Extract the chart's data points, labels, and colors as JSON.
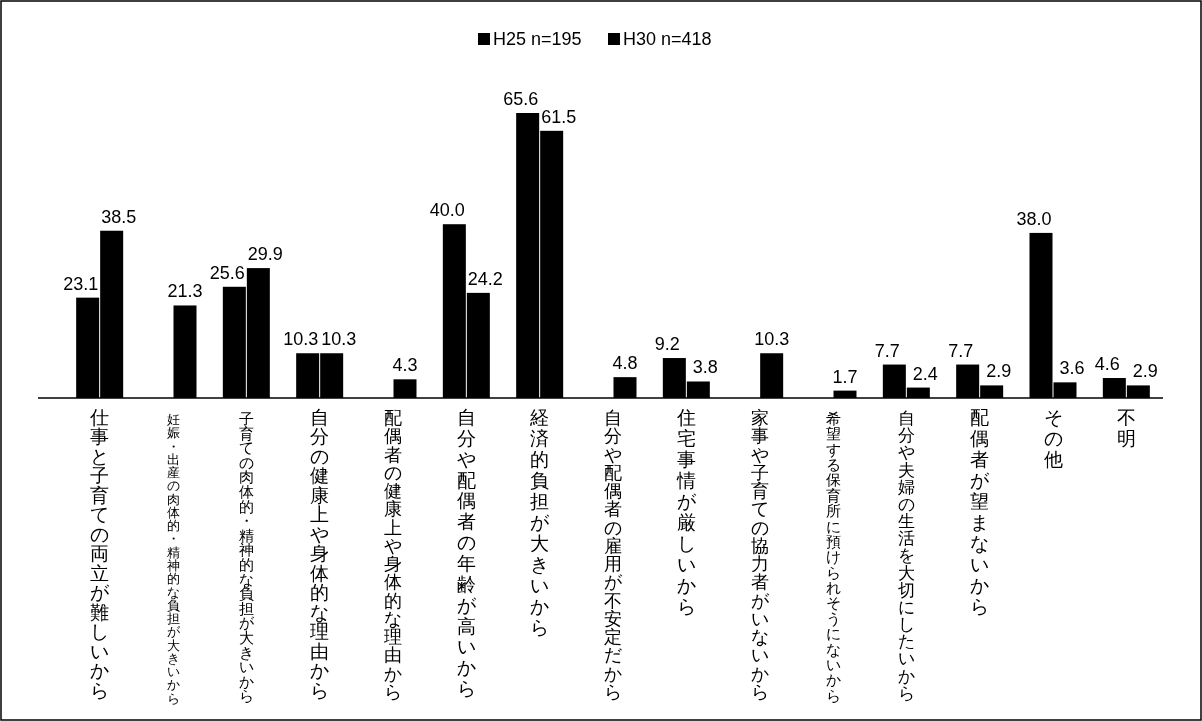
{
  "chart_data": {
    "type": "bar",
    "categories": [
      "仕事と子育ての両立が難しいから",
      "妊娠・出産の肉体的・精神的な負担が大きいから",
      "子育ての肉体的・精神的な負担が大きいから",
      "自分の健康上や身体的な理由から",
      "配偶者の健康上や身体的な理由から",
      "自分や配偶者の年齢が高いから",
      "経済的負担が大きいから",
      "自分や配偶者の雇用が不安定だから",
      "住宅事情が厳しいから",
      "家事や子育ての協力者がいないから",
      "希望する保育所に預けられそうにないから",
      "自分や夫婦の生活を大切にしたいから",
      "配偶者が望まないから",
      "その他",
      "不明"
    ],
    "series": [
      {
        "name": "H25 n=195",
        "color": "#000000",
        "values": [
          23.1,
          null,
          25.6,
          10.3,
          null,
          40.0,
          65.6,
          null,
          9.2,
          null,
          null,
          7.7,
          7.7,
          38.0,
          4.6
        ],
        "value_labels": [
          "23.1",
          null,
          "25.6",
          "10.3",
          null,
          "40.0",
          "65.6",
          null,
          "9.2",
          null,
          null,
          "7.7",
          "7.7",
          "38.0",
          "4.6"
        ]
      },
      {
        "name": "H30 n=418",
        "color": "#000000",
        "values": [
          38.5,
          21.3,
          29.9,
          10.3,
          4.3,
          24.2,
          61.5,
          4.8,
          3.8,
          10.3,
          1.7,
          2.4,
          2.9,
          3.6,
          2.9
        ],
        "value_labels": [
          "38.5",
          "21.3",
          "29.9",
          "10.3",
          "4.3",
          "24.2",
          "61.5",
          "4.8",
          "3.8",
          "10.3",
          "1.7",
          "2.4",
          "2.9",
          "3.6",
          "2.9"
        ]
      }
    ],
    "legend": "top"
  }
}
